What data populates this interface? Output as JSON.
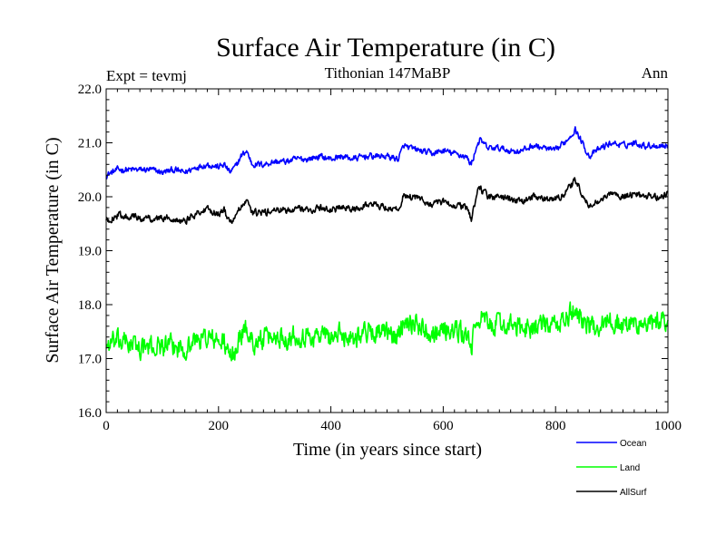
{
  "chart_data": {
    "type": "line",
    "title": "Surface Air Temperature (in C)",
    "subtitle_left": "Expt = tevmj",
    "subtitle_center": "Tithonian 147MaBP",
    "subtitle_right": "Ann",
    "xlabel": "Time (in years since start)",
    "ylabel": "Surface Air Temperature (in C)",
    "xlim": [
      0,
      1000
    ],
    "ylim": [
      16.0,
      22.0
    ],
    "xticks": [
      "0",
      "200",
      "400",
      "600",
      "800",
      "1000"
    ],
    "yticks": [
      "16.0",
      "17.0",
      "18.0",
      "19.0",
      "20.0",
      "21.0",
      "22.0"
    ],
    "series": [
      {
        "name": "Ocean",
        "color": "#0000ff",
        "x": [
          0,
          20,
          40,
          60,
          80,
          100,
          120,
          140,
          160,
          180,
          200,
          210,
          220,
          230,
          240,
          250,
          260,
          280,
          300,
          320,
          340,
          360,
          380,
          400,
          420,
          440,
          460,
          480,
          500,
          520,
          530,
          540,
          560,
          580,
          600,
          620,
          640,
          650,
          660,
          665,
          680,
          700,
          720,
          740,
          760,
          780,
          800,
          820,
          835,
          845,
          860,
          880,
          900,
          920,
          940,
          960,
          980,
          1000
        ],
        "values": [
          20.4,
          20.5,
          20.5,
          20.5,
          20.5,
          20.45,
          20.5,
          20.45,
          20.55,
          20.6,
          20.55,
          20.6,
          20.45,
          20.55,
          20.75,
          20.85,
          20.6,
          20.6,
          20.65,
          20.65,
          20.7,
          20.7,
          20.75,
          20.7,
          20.75,
          20.7,
          20.75,
          20.75,
          20.75,
          20.7,
          20.95,
          20.9,
          20.85,
          20.8,
          20.85,
          20.8,
          20.75,
          20.6,
          20.95,
          21.05,
          20.9,
          20.9,
          20.85,
          20.85,
          20.95,
          20.9,
          20.85,
          21.05,
          21.25,
          21.05,
          20.75,
          20.9,
          21.0,
          20.95,
          21.0,
          20.95,
          20.95,
          20.95
        ]
      },
      {
        "name": "Land",
        "color": "#00ff00",
        "x": [
          0,
          20,
          40,
          60,
          80,
          100,
          120,
          140,
          160,
          180,
          200,
          210,
          220,
          230,
          240,
          250,
          260,
          280,
          300,
          320,
          340,
          360,
          380,
          400,
          420,
          440,
          460,
          480,
          500,
          520,
          530,
          540,
          560,
          580,
          600,
          620,
          640,
          650,
          660,
          665,
          680,
          700,
          720,
          740,
          760,
          780,
          800,
          820,
          835,
          845,
          860,
          880,
          900,
          920,
          940,
          960,
          980,
          1000
        ],
        "values": [
          17.25,
          17.3,
          17.3,
          17.2,
          17.2,
          17.25,
          17.2,
          17.2,
          17.35,
          17.4,
          17.3,
          17.3,
          17.0,
          17.15,
          17.45,
          17.55,
          17.3,
          17.35,
          17.4,
          17.4,
          17.45,
          17.4,
          17.45,
          17.4,
          17.45,
          17.4,
          17.5,
          17.5,
          17.45,
          17.4,
          17.75,
          17.7,
          17.6,
          17.5,
          17.55,
          17.5,
          17.45,
          17.2,
          17.7,
          17.8,
          17.6,
          17.65,
          17.6,
          17.55,
          17.6,
          17.6,
          17.6,
          17.75,
          17.9,
          17.8,
          17.55,
          17.65,
          17.7,
          17.6,
          17.65,
          17.6,
          17.65,
          17.75
        ]
      },
      {
        "name": "AllSurf",
        "color": "#000000",
        "x": [
          0,
          20,
          40,
          60,
          80,
          100,
          120,
          140,
          160,
          180,
          200,
          210,
          220,
          230,
          240,
          250,
          260,
          280,
          300,
          320,
          340,
          360,
          380,
          400,
          420,
          440,
          460,
          480,
          500,
          520,
          530,
          540,
          560,
          580,
          600,
          620,
          640,
          650,
          660,
          665,
          680,
          700,
          720,
          740,
          760,
          780,
          800,
          820,
          835,
          845,
          860,
          880,
          900,
          920,
          940,
          960,
          980,
          1000
        ],
        "values": [
          19.55,
          19.65,
          19.65,
          19.6,
          19.6,
          19.6,
          19.6,
          19.55,
          19.7,
          19.75,
          19.7,
          19.75,
          19.5,
          19.65,
          19.8,
          19.9,
          19.7,
          19.7,
          19.75,
          19.75,
          19.8,
          19.75,
          19.8,
          19.75,
          19.8,
          19.75,
          19.85,
          19.85,
          19.8,
          19.75,
          20.05,
          20.0,
          19.95,
          19.85,
          19.9,
          19.85,
          19.8,
          19.6,
          20.05,
          20.15,
          20.0,
          20.0,
          19.95,
          19.9,
          20.0,
          19.95,
          19.95,
          20.1,
          20.3,
          20.1,
          19.8,
          19.95,
          20.05,
          20.0,
          20.05,
          20.0,
          20.0,
          20.05
        ]
      }
    ],
    "legend_position": "bottom-right"
  }
}
